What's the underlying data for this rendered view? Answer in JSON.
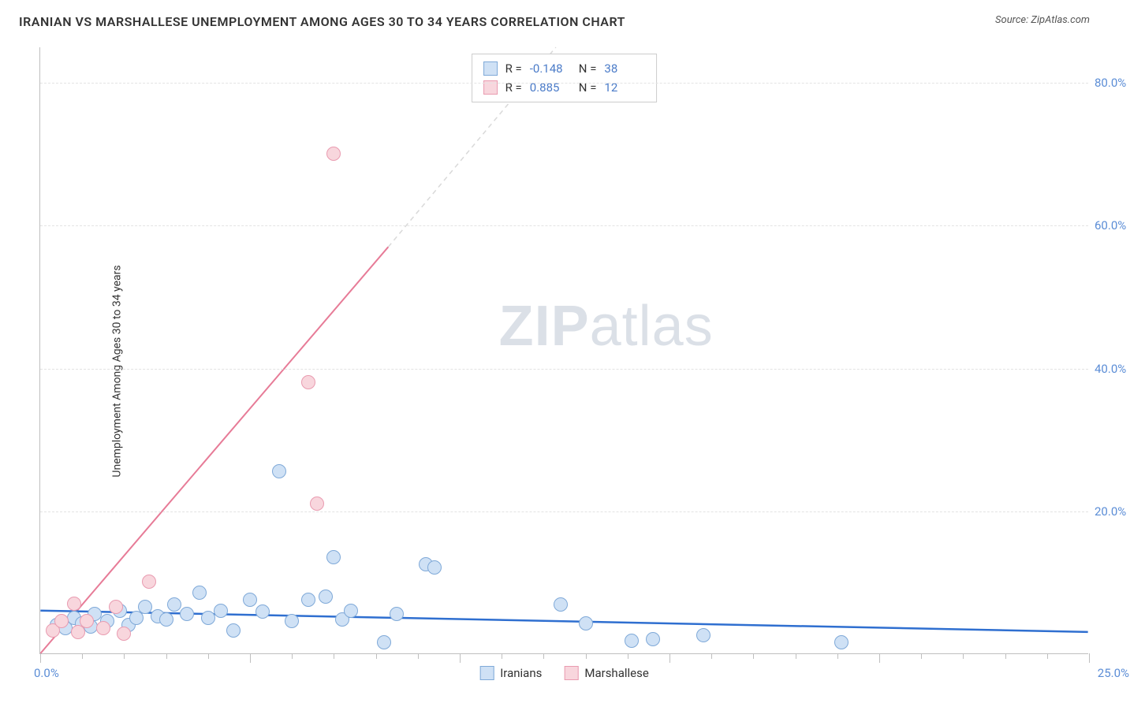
{
  "title": "IRANIAN VS MARSHALLESE UNEMPLOYMENT AMONG AGES 30 TO 34 YEARS CORRELATION CHART",
  "source": "Source: ZipAtlas.com",
  "ylabel": "Unemployment Among Ages 30 to 34 years",
  "watermark_bold": "ZIP",
  "watermark_thin": "atlas",
  "chart": {
    "type": "scatter",
    "background_color": "#ffffff",
    "grid_color": "#e3e3e3",
    "axis_color": "#bfbfbf",
    "tick_label_color": "#5b8dd6",
    "xlim": [
      0,
      25
    ],
    "ylim": [
      0,
      85
    ],
    "x_ticks_label": {
      "left": "0.0%",
      "right": "25.0%"
    },
    "y_ticks": [
      {
        "v": 20,
        "label": "20.0%"
      },
      {
        "v": 40,
        "label": "40.0%"
      },
      {
        "v": 60,
        "label": "60.0%"
      },
      {
        "v": 80,
        "label": "80.0%"
      }
    ],
    "x_majors": [
      0,
      5,
      10,
      15,
      20,
      25
    ],
    "x_minors": [
      1,
      2,
      3,
      4,
      6,
      7,
      8,
      9,
      11,
      12,
      13,
      14,
      16,
      17,
      18,
      19,
      21,
      22,
      23,
      24
    ],
    "marker_radius": 9,
    "marker_stroke_width": 1.5,
    "series": [
      {
        "name": "Iranians",
        "fill": "#cfe1f5",
        "stroke": "#7fa9d8",
        "R_label": "R =",
        "R": "-0.148",
        "N_label": "N =",
        "N": "38",
        "trend": {
          "x1": 0,
          "y1": 6.0,
          "x2": 25,
          "y2": 3.0,
          "color": "#2f6fd0",
          "width": 2.5,
          "dash": ""
        },
        "points": [
          [
            0.4,
            4.0
          ],
          [
            0.6,
            3.5
          ],
          [
            0.8,
            5.0
          ],
          [
            1.0,
            4.2
          ],
          [
            1.2,
            3.8
          ],
          [
            1.3,
            5.5
          ],
          [
            1.6,
            4.5
          ],
          [
            1.9,
            6.0
          ],
          [
            2.1,
            4.0
          ],
          [
            2.3,
            5.0
          ],
          [
            2.5,
            6.5
          ],
          [
            2.8,
            5.2
          ],
          [
            3.0,
            4.8
          ],
          [
            3.2,
            6.8
          ],
          [
            3.5,
            5.5
          ],
          [
            3.8,
            8.5
          ],
          [
            4.0,
            5.0
          ],
          [
            4.3,
            6.0
          ],
          [
            4.6,
            3.2
          ],
          [
            5.0,
            7.5
          ],
          [
            5.3,
            5.8
          ],
          [
            5.7,
            25.5
          ],
          [
            6.0,
            4.5
          ],
          [
            6.4,
            7.5
          ],
          [
            6.8,
            8.0
          ],
          [
            7.0,
            13.5
          ],
          [
            7.2,
            4.8
          ],
          [
            7.4,
            6.0
          ],
          [
            8.2,
            1.5
          ],
          [
            8.5,
            5.5
          ],
          [
            9.2,
            12.5
          ],
          [
            9.4,
            12.0
          ],
          [
            12.4,
            6.8
          ],
          [
            13.0,
            4.2
          ],
          [
            14.1,
            1.8
          ],
          [
            14.6,
            2.0
          ],
          [
            15.8,
            2.5
          ],
          [
            19.1,
            1.6
          ]
        ]
      },
      {
        "name": "Marshallese",
        "fill": "#f8d6dd",
        "stroke": "#e99bb0",
        "R_label": "R =",
        "R": "0.885",
        "N_label": "N =",
        "N": "12",
        "trend_solid": {
          "x1": 0,
          "y1": 0,
          "x2": 8.3,
          "y2": 57,
          "color": "#e77b97",
          "width": 2,
          "dash": ""
        },
        "trend_dashed": {
          "x1": 8.3,
          "y1": 57,
          "x2": 12.3,
          "y2": 85,
          "color": "#d9d9d9",
          "width": 1.5,
          "dash": "6 5"
        },
        "points": [
          [
            0.3,
            3.2
          ],
          [
            0.5,
            4.5
          ],
          [
            0.8,
            7.0
          ],
          [
            0.9,
            3.0
          ],
          [
            1.1,
            4.5
          ],
          [
            1.5,
            3.5
          ],
          [
            1.8,
            6.5
          ],
          [
            2.0,
            2.8
          ],
          [
            2.6,
            10.0
          ],
          [
            6.4,
            38.0
          ],
          [
            6.6,
            21.0
          ],
          [
            7.0,
            70.0
          ]
        ]
      }
    ]
  },
  "legend_bottom": [
    {
      "label": "Iranians",
      "fill": "#cfe1f5",
      "stroke": "#7fa9d8"
    },
    {
      "label": "Marshallese",
      "fill": "#f8d6dd",
      "stroke": "#e99bb0"
    }
  ]
}
